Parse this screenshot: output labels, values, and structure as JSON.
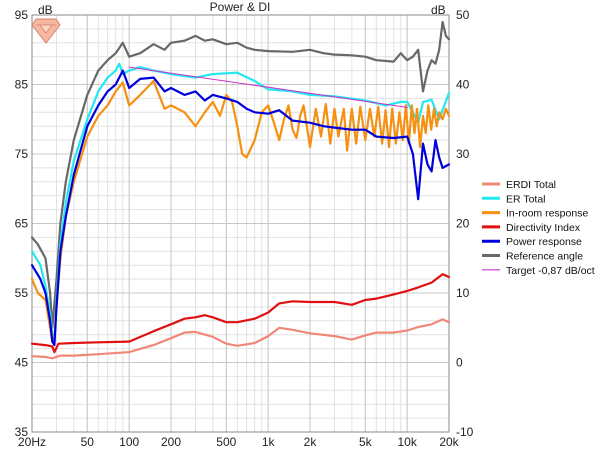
{
  "chart_data": {
    "type": "line",
    "title": "Power & DI",
    "left_unit": "dB",
    "right_unit": "dB",
    "x_scale": "log",
    "xlim": [
      20,
      20000
    ],
    "ylim_left": [
      35,
      95
    ],
    "ylim_right": [
      -10,
      50
    ],
    "grid": true,
    "legend_position": "right-middle",
    "x_ticks": [
      {
        "v": 20,
        "label": "20Hz"
      },
      {
        "v": 50,
        "label": "50"
      },
      {
        "v": 100,
        "label": "100"
      },
      {
        "v": 200,
        "label": "200"
      },
      {
        "v": 500,
        "label": "500"
      },
      {
        "v": 1000,
        "label": "1k"
      },
      {
        "v": 2000,
        "label": "2k"
      },
      {
        "v": 5000,
        "label": "5k"
      },
      {
        "v": 10000,
        "label": "10k"
      },
      {
        "v": 20000,
        "label": "20k"
      }
    ],
    "y_left_ticks": [
      "35",
      "45",
      "55",
      "65",
      "75",
      "85",
      "95"
    ],
    "y_right_ticks": [
      "-10",
      "0",
      "10",
      "20",
      "30",
      "40",
      "50"
    ],
    "series": [
      {
        "name": "ERDI Total",
        "axis": "right",
        "color": "#f08878",
        "points": [
          [
            20,
            0.9
          ],
          [
            25,
            0.8
          ],
          [
            28,
            0.6
          ],
          [
            32,
            1.0
          ],
          [
            40,
            1.0
          ],
          [
            60,
            1.2
          ],
          [
            100,
            1.5
          ],
          [
            150,
            2.5
          ],
          [
            200,
            3.5
          ],
          [
            250,
            4.3
          ],
          [
            300,
            4.4
          ],
          [
            400,
            3.7
          ],
          [
            500,
            2.7
          ],
          [
            600,
            2.4
          ],
          [
            800,
            2.8
          ],
          [
            1000,
            3.8
          ],
          [
            1200,
            5.0
          ],
          [
            1500,
            4.7
          ],
          [
            2000,
            4.2
          ],
          [
            3000,
            3.8
          ],
          [
            4000,
            3.3
          ],
          [
            5000,
            3.9
          ],
          [
            6000,
            4.3
          ],
          [
            8000,
            4.3
          ],
          [
            10000,
            4.6
          ],
          [
            12000,
            5.1
          ],
          [
            15000,
            5.5
          ],
          [
            18000,
            6.2
          ],
          [
            20000,
            5.8
          ]
        ]
      },
      {
        "name": "ER Total",
        "axis": "left",
        "color": "#22e8f0",
        "points": [
          [
            20,
            61
          ],
          [
            23,
            59
          ],
          [
            25,
            56
          ],
          [
            27,
            52
          ],
          [
            28,
            49
          ],
          [
            29,
            48
          ],
          [
            30,
            54
          ],
          [
            32,
            62
          ],
          [
            35,
            68
          ],
          [
            40,
            74
          ],
          [
            50,
            80
          ],
          [
            60,
            84
          ],
          [
            70,
            86
          ],
          [
            80,
            87
          ],
          [
            85,
            88
          ],
          [
            90,
            86.5
          ],
          [
            100,
            87
          ],
          [
            120,
            87.5
          ],
          [
            150,
            87
          ],
          [
            200,
            86.5
          ],
          [
            300,
            86
          ],
          [
            400,
            86.5
          ],
          [
            600,
            86.7
          ],
          [
            800,
            85.5
          ],
          [
            1000,
            84.3
          ],
          [
            1500,
            84
          ],
          [
            2000,
            83.5
          ],
          [
            3000,
            83.3
          ],
          [
            5000,
            82.7
          ],
          [
            7000,
            82
          ],
          [
            9000,
            82.5
          ],
          [
            10000,
            82.5
          ],
          [
            12000,
            79.5
          ],
          [
            13000,
            82.5
          ],
          [
            15000,
            82.8
          ],
          [
            17000,
            80
          ],
          [
            20000,
            83.8
          ]
        ]
      },
      {
        "name": "In-room response",
        "axis": "left",
        "color": "#f59010",
        "points": [
          [
            20,
            57
          ],
          [
            22,
            55
          ],
          [
            25,
            54
          ],
          [
            27,
            50
          ],
          [
            28,
            48
          ],
          [
            29,
            48.5
          ],
          [
            30,
            53
          ],
          [
            32,
            60
          ],
          [
            35,
            66
          ],
          [
            40,
            71
          ],
          [
            50,
            77.5
          ],
          [
            60,
            80.5
          ],
          [
            70,
            82
          ],
          [
            80,
            84
          ],
          [
            90,
            85.3
          ],
          [
            100,
            82
          ],
          [
            120,
            83.5
          ],
          [
            150,
            85.5
          ],
          [
            180,
            81.5
          ],
          [
            200,
            82
          ],
          [
            250,
            81
          ],
          [
            300,
            79
          ],
          [
            350,
            81
          ],
          [
            400,
            82.5
          ],
          [
            450,
            80.5
          ],
          [
            500,
            83.5
          ],
          [
            550,
            82.5
          ],
          [
            600,
            79
          ],
          [
            650,
            75
          ],
          [
            700,
            74.5
          ],
          [
            800,
            77
          ],
          [
            900,
            81
          ],
          [
            1000,
            82
          ],
          [
            1100,
            79.5
          ],
          [
            1200,
            77
          ],
          [
            1300,
            80
          ],
          [
            1400,
            82
          ],
          [
            1500,
            78.5
          ],
          [
            1600,
            77.3
          ],
          [
            1700,
            80.5
          ],
          [
            1800,
            82
          ],
          [
            2000,
            76
          ],
          [
            2200,
            81.5
          ],
          [
            2400,
            77.5
          ],
          [
            2600,
            82.2
          ],
          [
            2800,
            76.5
          ],
          [
            3000,
            81.5
          ],
          [
            3200,
            77.5
          ],
          [
            3500,
            81.5
          ],
          [
            3700,
            75.5
          ],
          [
            4000,
            81.5
          ],
          [
            4300,
            76.5
          ],
          [
            4600,
            81.8
          ],
          [
            5000,
            77
          ],
          [
            5400,
            81.5
          ],
          [
            5800,
            77.5
          ],
          [
            6200,
            81.8
          ],
          [
            6600,
            76.5
          ],
          [
            7000,
            81.3
          ],
          [
            7400,
            76
          ],
          [
            7800,
            81.5
          ],
          [
            8300,
            76.5
          ],
          [
            8800,
            81
          ],
          [
            9300,
            77
          ],
          [
            9800,
            82
          ],
          [
            10300,
            76.5
          ],
          [
            10800,
            82
          ],
          [
            11300,
            78
          ],
          [
            11800,
            81.5
          ],
          [
            12400,
            76
          ],
          [
            13000,
            80.5
          ],
          [
            13600,
            78
          ],
          [
            14200,
            82
          ],
          [
            14900,
            78.5
          ],
          [
            15600,
            81.5
          ],
          [
            16300,
            79
          ],
          [
            17000,
            81
          ],
          [
            18000,
            80
          ],
          [
            19000,
            81.5
          ],
          [
            20000,
            80.5
          ]
        ]
      },
      {
        "name": "Directivity Index",
        "axis": "right",
        "color": "#e01010",
        "points": [
          [
            20,
            2.7
          ],
          [
            25,
            2.5
          ],
          [
            28,
            2.3
          ],
          [
            29,
            1.5
          ],
          [
            31,
            2.7
          ],
          [
            40,
            2.8
          ],
          [
            60,
            2.9
          ],
          [
            100,
            3.0
          ],
          [
            150,
            4.5
          ],
          [
            200,
            5.5
          ],
          [
            250,
            6.3
          ],
          [
            300,
            6.5
          ],
          [
            350,
            6.8
          ],
          [
            400,
            6.5
          ],
          [
            500,
            5.8
          ],
          [
            600,
            5.8
          ],
          [
            800,
            6.3
          ],
          [
            1000,
            7.2
          ],
          [
            1200,
            8.5
          ],
          [
            1500,
            8.8
          ],
          [
            2000,
            8.7
          ],
          [
            3000,
            8.7
          ],
          [
            4000,
            8.3
          ],
          [
            5000,
            9.0
          ],
          [
            6000,
            9.2
          ],
          [
            8000,
            9.8
          ],
          [
            10000,
            10.3
          ],
          [
            12000,
            10.8
          ],
          [
            15000,
            11.5
          ],
          [
            18000,
            12.7
          ],
          [
            20000,
            12.3
          ]
        ]
      },
      {
        "name": "Power response",
        "axis": "left",
        "color": "#0000dd",
        "points": [
          [
            20,
            59
          ],
          [
            23,
            57
          ],
          [
            25,
            55
          ],
          [
            27,
            51
          ],
          [
            28,
            48
          ],
          [
            29,
            47.5
          ],
          [
            30,
            53
          ],
          [
            32,
            61
          ],
          [
            35,
            66
          ],
          [
            40,
            72
          ],
          [
            50,
            79
          ],
          [
            60,
            82
          ],
          [
            70,
            84
          ],
          [
            80,
            85
          ],
          [
            90,
            87
          ],
          [
            100,
            84.5
          ],
          [
            120,
            85.8
          ],
          [
            150,
            86
          ],
          [
            180,
            84
          ],
          [
            200,
            84.5
          ],
          [
            250,
            83.5
          ],
          [
            300,
            84
          ],
          [
            350,
            82.7
          ],
          [
            400,
            83.5
          ],
          [
            500,
            83
          ],
          [
            600,
            82.5
          ],
          [
            700,
            81.5
          ],
          [
            800,
            81
          ],
          [
            1000,
            80.8
          ],
          [
            1200,
            81.3
          ],
          [
            1500,
            79.8
          ],
          [
            2000,
            79.5
          ],
          [
            2500,
            79
          ],
          [
            3000,
            78.8
          ],
          [
            4000,
            78.5
          ],
          [
            5000,
            78.5
          ],
          [
            6000,
            77.5
          ],
          [
            8000,
            77.3
          ],
          [
            10000,
            77.5
          ],
          [
            11000,
            75
          ],
          [
            12000,
            68.5
          ],
          [
            13000,
            76.5
          ],
          [
            14000,
            73.5
          ],
          [
            15000,
            72.5
          ],
          [
            16000,
            77
          ],
          [
            17000,
            74.5
          ],
          [
            18000,
            73
          ],
          [
            20000,
            73.5
          ]
        ]
      },
      {
        "name": "Reference angle",
        "axis": "left",
        "color": "#686868",
        "points": [
          [
            20,
            63
          ],
          [
            22,
            62
          ],
          [
            25,
            60
          ],
          [
            27,
            55
          ],
          [
            28,
            50
          ],
          [
            30,
            57
          ],
          [
            32,
            65
          ],
          [
            35,
            71
          ],
          [
            40,
            77
          ],
          [
            50,
            83.5
          ],
          [
            60,
            87
          ],
          [
            70,
            88.5
          ],
          [
            80,
            89.5
          ],
          [
            90,
            91
          ],
          [
            100,
            89
          ],
          [
            120,
            89.5
          ],
          [
            150,
            90.8
          ],
          [
            180,
            90
          ],
          [
            200,
            91
          ],
          [
            250,
            91.3
          ],
          [
            300,
            92
          ],
          [
            350,
            91.3
          ],
          [
            400,
            91.5
          ],
          [
            500,
            90.8
          ],
          [
            600,
            91
          ],
          [
            700,
            90.3
          ],
          [
            800,
            90
          ],
          [
            1000,
            89.8
          ],
          [
            1500,
            89.7
          ],
          [
            2000,
            90
          ],
          [
            2500,
            89.5
          ],
          [
            3000,
            89.3
          ],
          [
            4000,
            89.2
          ],
          [
            5000,
            89
          ],
          [
            6000,
            88.5
          ],
          [
            8000,
            88.3
          ],
          [
            9000,
            89.5
          ],
          [
            10000,
            88.5
          ],
          [
            11000,
            89
          ],
          [
            12000,
            90
          ],
          [
            13000,
            84
          ],
          [
            14000,
            87
          ],
          [
            15000,
            88.5
          ],
          [
            16000,
            88
          ],
          [
            17000,
            90
          ],
          [
            18000,
            94
          ],
          [
            19000,
            92
          ],
          [
            20000,
            91.5
          ]
        ]
      },
      {
        "name": "Target -0,87 dB/oct",
        "axis": "left",
        "color": "#c832c8",
        "points": [
          [
            100,
            87.5
          ],
          [
            10000,
            81.7
          ]
        ]
      }
    ],
    "legend_entries": [
      {
        "name": "ERDI Total",
        "color": "#f08878"
      },
      {
        "name": "ER Total",
        "color": "#22e8f0"
      },
      {
        "name": "In-room response",
        "color": "#f59010"
      },
      {
        "name": "Directivity Index",
        "color": "#e01010"
      },
      {
        "name": "Power response",
        "color": "#0000dd"
      },
      {
        "name": "Reference angle",
        "color": "#686868"
      },
      {
        "name": "Target -0,87 dB/oct",
        "color": "#c832c8"
      }
    ],
    "colors": {
      "minor_grid": "#e2e2e2",
      "major_grid": "#c8c8c8",
      "frame": "#8a8a8a",
      "background": "#ffffff",
      "logo_fill": "#f4b8a0",
      "logo_stroke": "#e08070"
    }
  }
}
